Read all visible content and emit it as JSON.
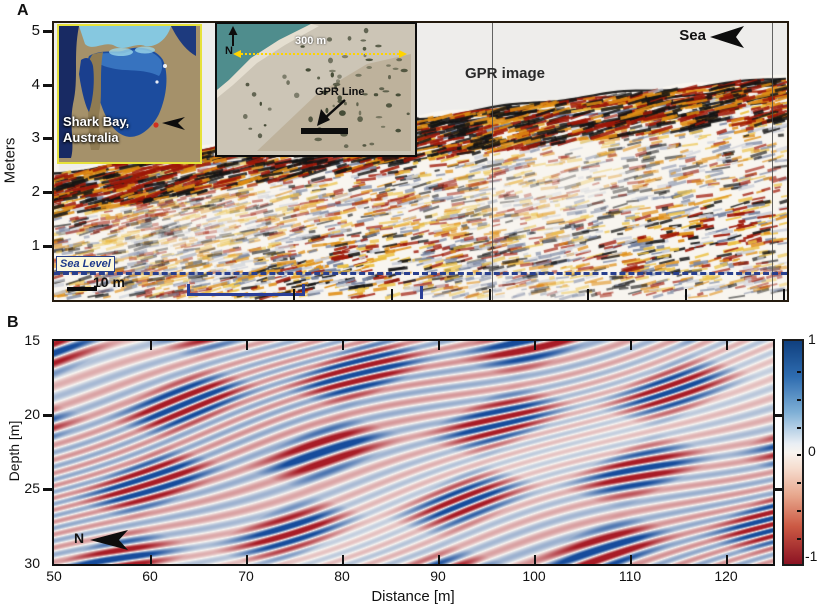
{
  "figure": {
    "panel_a": {
      "label": "A",
      "ylabel": "Meters",
      "yticks": [
        "5",
        "4",
        "3",
        "2",
        "1"
      ],
      "gpr_image_label": "GPR image",
      "sea_label": "Sea",
      "sea_level_label": "Sea Level",
      "scale_bar_label": "10 m",
      "inset_map": {
        "caption_line1": "Shark Bay,",
        "caption_line2": "Australia"
      },
      "inset_photo": {
        "north_label": "N",
        "scale_label": "300 m",
        "gpr_line_label": "GPR Line"
      }
    },
    "panel_b": {
      "label": "B",
      "ylabel": "Depth [m]",
      "xlabel": "Distance [m]",
      "yticks": [
        "15",
        "20",
        "25",
        "30"
      ],
      "xticks": [
        "50",
        "60",
        "70",
        "80",
        "90",
        "100",
        "110",
        "120"
      ],
      "north_label": "N",
      "colorbar_ticks": [
        "1",
        "0",
        "-1"
      ]
    },
    "colors": {
      "sea_level_navy": "#27408b",
      "bracket_blue": "#2b3f98",
      "inset_border_yellow": "#e6e23a",
      "radargram_palette": [
        "#141414",
        "#9e1808",
        "#df8d13",
        "#ecc143",
        "#75829f"
      ],
      "colorbar_top_blue": "#10407f",
      "colorbar_bottom_red": "#8c1323"
    }
  },
  "chart_data": [
    {
      "type": "heatmap",
      "panel": "A",
      "title": "GPR image",
      "ylabel": "Meters",
      "ylim": [
        0,
        5.2
      ],
      "yticks": [
        1,
        2,
        3,
        4,
        5
      ],
      "x_axis": "unlabeled; horizontal scale bar of 10 m shown at lower left",
      "scale_bar_m": 10,
      "grid": false,
      "colormap": "wiggle amplitude: black / dark-red / orange / yellow / blue-gray on white",
      "annotations": [
        "Sea (arrow pointing left, top right)",
        "Sea Level (navy dashed horizontal line at ~0.5 m elevation)",
        "blue bracket under lower axis marking a sub-section",
        "two thin vertical trace-boundary lines inside panel"
      ],
      "description": "Ground-penetrating-radar profile of a prograding coastal beach-ridge wedge at Shark Bay, Australia. The ground surface rises from ~2.7 m at the left to ~5 m at the right (toward the sea); strong reflectors dip landward (down to the left), parallel to the surface. Empty gray region above the surface.",
      "insets": [
        {
          "name": "location satellite map",
          "labels": [
            "Shark Bay,",
            "Australia"
          ],
          "marker": "black arrow pointing to red dot on bay shore"
        },
        {
          "name": "aerial photograph",
          "labels": [
            "N (north arrow)",
            "300 m (yellow dotted scale line with arrowheads)",
            "GPR Line (arrow to black line segment)"
          ]
        }
      ]
    },
    {
      "type": "heatmap",
      "panel": "B",
      "xlabel": "Distance [m]",
      "ylabel": "Depth [m]",
      "xlim": [
        50,
        125
      ],
      "ylim": [
        30,
        15
      ],
      "xticks": [
        50,
        60,
        70,
        80,
        90,
        100,
        110,
        120
      ],
      "yticks": [
        15,
        20,
        25,
        30
      ],
      "grid": false,
      "colormap": "diverging red-white-blue",
      "colorbar": {
        "ticks_labeled": [
          1,
          0,
          -1
        ],
        "range": [
          -1,
          1
        ],
        "position": "right"
      },
      "annotations": [
        "N (black arrow pointing left, bottom left inside panel)"
      ],
      "description": "Normalized-amplitude depth section (values -1 to 1). Packages of alternating red/blue reflectors dip down toward the left (landward), rising toward the sea on the right, between patches of weak near-white amplitude."
    }
  ]
}
